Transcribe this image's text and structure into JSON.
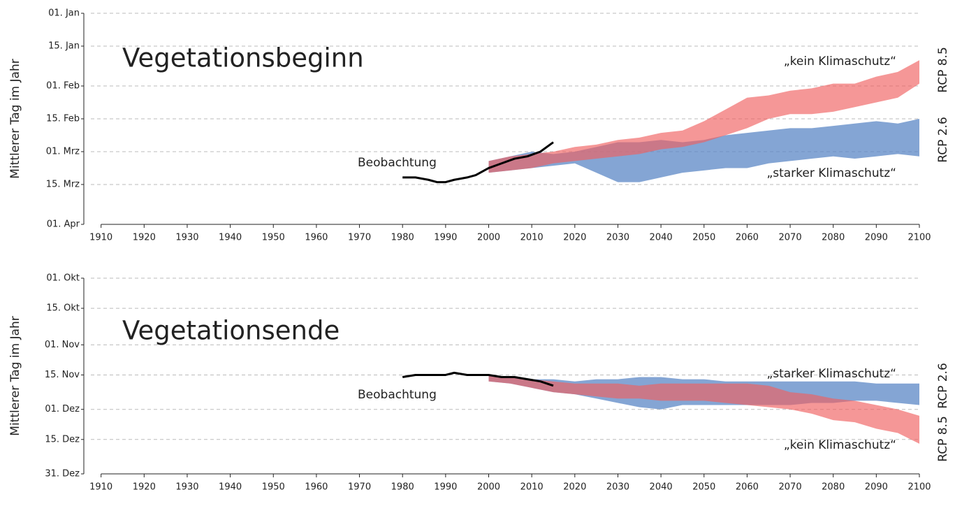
{
  "chart_data": [
    {
      "type": "area",
      "title": "Vegetationsbeginn",
      "y_label": "Mittlerer Tag im Jahr",
      "annotation": "Beobachtung",
      "xlim": [
        1906,
        2100
      ],
      "xticks": [
        1910,
        1920,
        1930,
        1940,
        1950,
        1960,
        1970,
        1980,
        1990,
        2000,
        2010,
        2020,
        2030,
        2040,
        2050,
        2060,
        2070,
        2080,
        2090,
        2100
      ],
      "ylim": [
        91,
        1
      ],
      "yticks": [
        {
          "value": 1,
          "label": "01. Jan"
        },
        {
          "value": 15,
          "label": "15. Jan"
        },
        {
          "value": 32,
          "label": "01. Feb"
        },
        {
          "value": 46,
          "label": "15. Feb"
        },
        {
          "value": 60,
          "label": "01. Mrz"
        },
        {
          "value": 74,
          "label": "15. Mrz"
        },
        {
          "value": 91,
          "label": "01. Apr"
        }
      ],
      "grid": true,
      "series": [
        {
          "name": "RCP 2.6",
          "label": "„starker Klimaschutz“",
          "color": "#5b87c5",
          "x": [
            2000,
            2005,
            2010,
            2015,
            2020,
            2025,
            2030,
            2035,
            2040,
            2045,
            2050,
            2055,
            2060,
            2065,
            2070,
            2075,
            2080,
            2085,
            2090,
            2095,
            2100
          ],
          "min": [
            64,
            62,
            60,
            61,
            60,
            58,
            56,
            56,
            55,
            56,
            55,
            53,
            52,
            51,
            50,
            50,
            49,
            48,
            47,
            48,
            46
          ],
          "max": [
            69,
            68,
            67,
            66,
            65,
            69,
            73,
            73,
            71,
            69,
            68,
            67,
            67,
            65,
            64,
            63,
            62,
            63,
            62,
            61,
            62
          ]
        },
        {
          "name": "RCP 8.5",
          "label": "„kein Klimaschutz“",
          "color": "#ef5f5f",
          "x": [
            2000,
            2005,
            2010,
            2015,
            2020,
            2025,
            2030,
            2035,
            2040,
            2045,
            2050,
            2055,
            2060,
            2065,
            2070,
            2075,
            2080,
            2085,
            2090,
            2095,
            2100
          ],
          "min": [
            64,
            62,
            61,
            60,
            58,
            57,
            55,
            54,
            52,
            51,
            47,
            42,
            37,
            36,
            34,
            33,
            31,
            31,
            28,
            26,
            21
          ],
          "max": [
            69,
            68,
            67,
            65,
            64,
            63,
            62,
            61,
            59,
            58,
            56,
            53,
            50,
            46,
            44,
            44,
            43,
            41,
            39,
            37,
            31
          ]
        },
        {
          "name": "Beobachtung",
          "color": "#000000",
          "x": [
            1980,
            1983,
            1986,
            1988,
            1990,
            1992,
            1995,
            1997,
            2000,
            2003,
            2006,
            2009,
            2012,
            2015
          ],
          "values": [
            71,
            71,
            72,
            73,
            73,
            72,
            71,
            70,
            67,
            65,
            63,
            62,
            60,
            56
          ]
        }
      ]
    },
    {
      "type": "area",
      "title": "Vegetationsende",
      "y_label": "Mittlerer Tag im Jahr",
      "annotation": "Beobachtung",
      "xlim": [
        1906,
        2100
      ],
      "xticks": [
        1910,
        1920,
        1930,
        1940,
        1950,
        1960,
        1970,
        1980,
        1990,
        2000,
        2010,
        2020,
        2030,
        2040,
        2050,
        2060,
        2070,
        2080,
        2090,
        2100
      ],
      "ylim": [
        365,
        274
      ],
      "yticks": [
        {
          "value": 274,
          "label": "01. Okt"
        },
        {
          "value": 288,
          "label": "15. Okt"
        },
        {
          "value": 305,
          "label": "01. Nov"
        },
        {
          "value": 319,
          "label": "15. Nov"
        },
        {
          "value": 335,
          "label": "01. Dez"
        },
        {
          "value": 349,
          "label": "15. Dez"
        },
        {
          "value": 365,
          "label": "31. Dez"
        }
      ],
      "grid": true,
      "series": [
        {
          "name": "RCP 2.6",
          "label": "„starker Klimaschutz“",
          "color": "#5b87c5",
          "x": [
            2000,
            2005,
            2010,
            2015,
            2020,
            2025,
            2030,
            2035,
            2040,
            2045,
            2050,
            2055,
            2060,
            2065,
            2070,
            2075,
            2080,
            2085,
            2090,
            2095,
            2100
          ],
          "min": [
            319,
            320,
            321,
            321,
            322,
            321,
            321,
            320,
            320,
            321,
            321,
            322,
            322,
            322,
            322,
            322,
            322,
            322,
            323,
            323,
            323
          ],
          "max": [
            322,
            323,
            325,
            327,
            328,
            330,
            332,
            334,
            335,
            333,
            333,
            333,
            333,
            333,
            333,
            332,
            332,
            331,
            331,
            332,
            333
          ]
        },
        {
          "name": "RCP 8.5",
          "label": "„kein Klimaschutz“",
          "color": "#ef5f5f",
          "x": [
            2000,
            2005,
            2010,
            2015,
            2020,
            2025,
            2030,
            2035,
            2040,
            2045,
            2050,
            2055,
            2060,
            2065,
            2070,
            2075,
            2080,
            2085,
            2090,
            2095,
            2100
          ],
          "min": [
            319,
            320,
            321,
            322,
            323,
            323,
            323,
            324,
            323,
            323,
            323,
            323,
            323,
            324,
            327,
            328,
            330,
            331,
            333,
            335,
            338
          ],
          "max": [
            322,
            323,
            325,
            327,
            328,
            329,
            330,
            330,
            331,
            331,
            331,
            332,
            333,
            334,
            335,
            337,
            340,
            341,
            344,
            346,
            351
          ]
        },
        {
          "name": "Beobachtung",
          "color": "#000000",
          "x": [
            1980,
            1983,
            1986,
            1988,
            1990,
            1992,
            1995,
            1997,
            2000,
            2003,
            2006,
            2009,
            2012,
            2015
          ],
          "values": [
            320,
            319,
            319,
            319,
            319,
            318,
            319,
            319,
            319,
            320,
            320,
            321,
            322,
            324
          ]
        }
      ]
    }
  ]
}
